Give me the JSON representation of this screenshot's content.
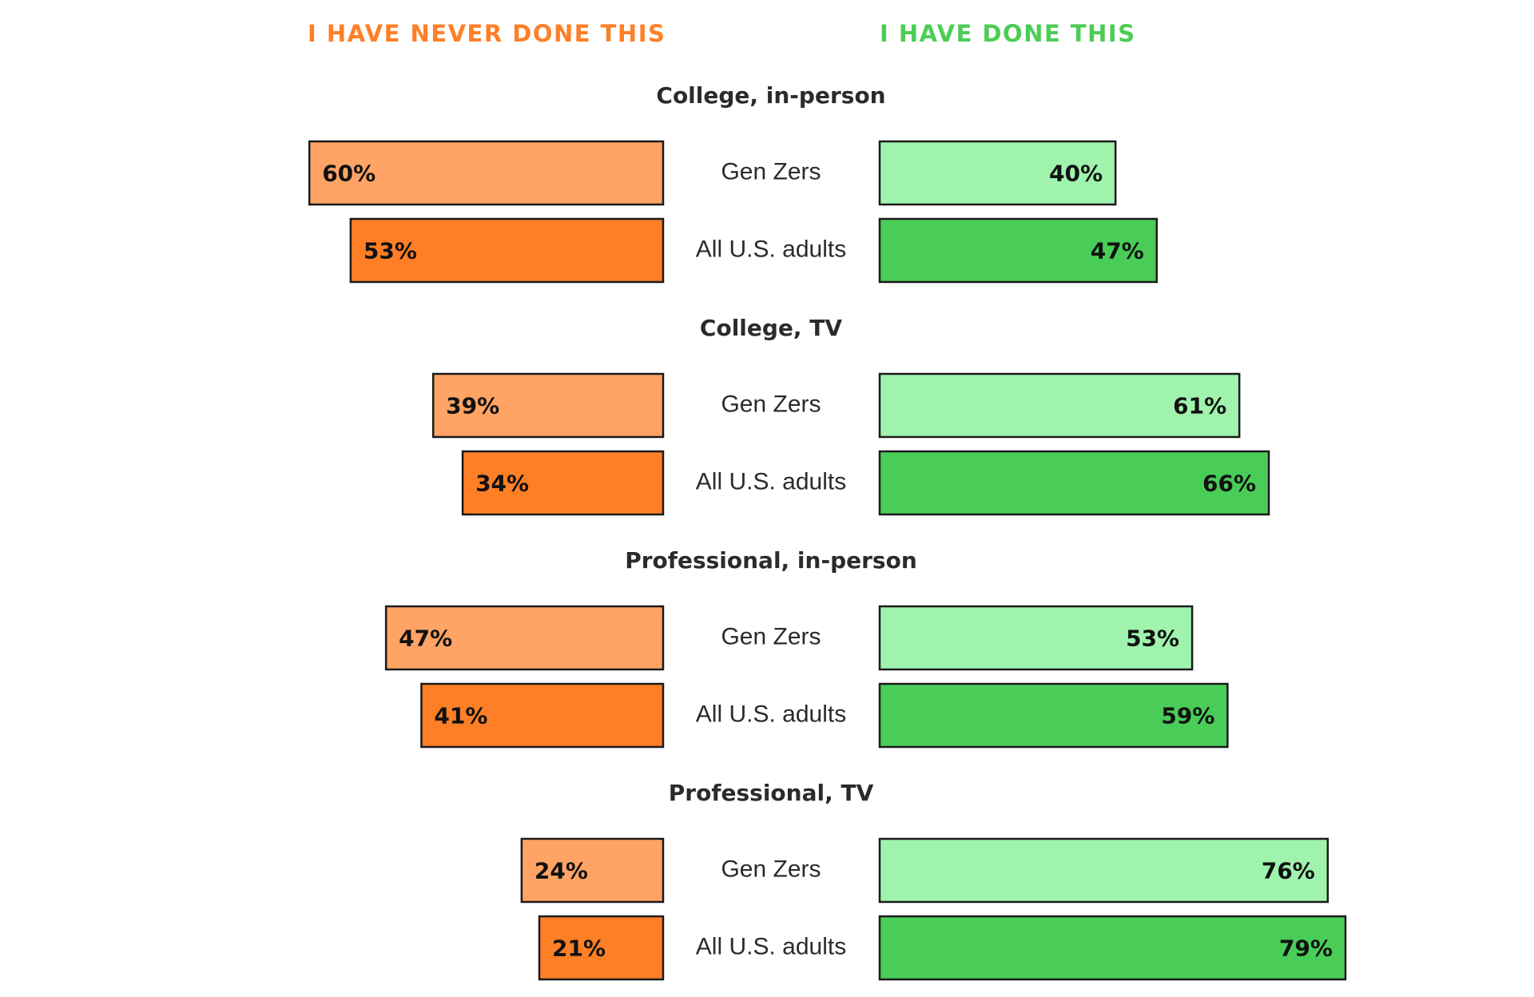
{
  "colors": {
    "never_header": "#ff7f27",
    "done_header": "#4ccd55",
    "never_gen_z": "#ffa464",
    "never_all_adults": "#ff7f27",
    "done_gen_z": "#9ff3ad",
    "done_all_adults": "#49cd58"
  },
  "chart_data": {
    "type": "bar",
    "orientation": "horizontal-diverging",
    "headers": {
      "left": "I HAVE NEVER DONE THIS",
      "right": "I HAVE DONE THIS"
    },
    "value_suffix": "%",
    "groups": [
      {
        "title": "College, in-person",
        "rows": [
          {
            "label": "Gen Zers",
            "never": 60,
            "done": 40,
            "never_text": "60%",
            "done_text": "40%"
          },
          {
            "label": "All U.S. adults",
            "never": 53,
            "done": 47,
            "never_text": "53%",
            "done_text": "47%"
          }
        ]
      },
      {
        "title": "College, TV",
        "rows": [
          {
            "label": "Gen Zers",
            "never": 39,
            "done": 61,
            "never_text": "39%",
            "done_text": "61%"
          },
          {
            "label": "All U.S. adults",
            "never": 34,
            "done": 66,
            "never_text": "34%",
            "done_text": "66%"
          }
        ]
      },
      {
        "title": "Professional, in-person",
        "rows": [
          {
            "label": "Gen Zers",
            "never": 47,
            "done": 53,
            "never_text": "47%",
            "done_text": "53%"
          },
          {
            "label": "All U.S. adults",
            "never": 41,
            "done": 59,
            "never_text": "41%",
            "done_text": "59%"
          }
        ]
      },
      {
        "title": "Professional, TV",
        "rows": [
          {
            "label": "Gen Zers",
            "never": 24,
            "done": 76,
            "never_text": "24%",
            "done_text": "76%"
          },
          {
            "label": "All U.S. adults",
            "never": 21,
            "done": 79,
            "never_text": "21%",
            "done_text": "79%"
          }
        ]
      }
    ],
    "xlim": [
      0,
      100
    ],
    "grid": false,
    "legend": "none"
  }
}
